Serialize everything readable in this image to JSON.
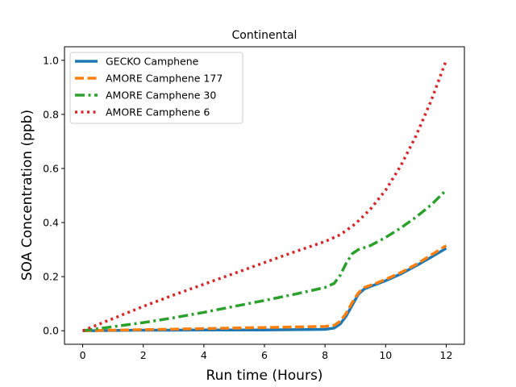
{
  "chart_data": {
    "type": "line",
    "title": "Continental",
    "xlabel": "Run time (Hours)",
    "ylabel": "SOA Concentration (ppb)",
    "xlim": [
      -0.6,
      12.6
    ],
    "ylim": [
      -0.05,
      1.05
    ],
    "xticks": [
      0,
      2,
      4,
      6,
      8,
      10,
      12
    ],
    "yticks": [
      0.0,
      0.2,
      0.4,
      0.6,
      0.8,
      1.0
    ],
    "xtick_labels": [
      "0",
      "2",
      "4",
      "6",
      "8",
      "10",
      "12"
    ],
    "ytick_labels": [
      "0.0",
      "0.2",
      "0.4",
      "0.6",
      "0.8",
      "1.0"
    ],
    "grid": false,
    "legend_position": "top-left",
    "series": [
      {
        "name": "GECKO Camphene",
        "color": "#1f77b4",
        "style": "solid",
        "x": [
          0,
          1,
          2,
          3,
          4,
          5,
          6,
          7,
          8,
          8.3,
          8.5,
          8.7,
          8.9,
          9.1,
          9.3,
          9.6,
          10,
          10.5,
          11,
          11.5,
          12
        ],
        "y": [
          0,
          0.001,
          0.002,
          0.002,
          0.003,
          0.003,
          0.003,
          0.004,
          0.005,
          0.01,
          0.025,
          0.055,
          0.095,
          0.135,
          0.155,
          0.168,
          0.185,
          0.21,
          0.24,
          0.272,
          0.305
        ]
      },
      {
        "name": "AMORE Camphene 177",
        "color": "#ff7f0e",
        "style": "dashed",
        "x": [
          0,
          1,
          2,
          3,
          4,
          5,
          6,
          7,
          8,
          8.3,
          8.5,
          8.7,
          8.9,
          9.1,
          9.3,
          9.6,
          10,
          10.5,
          11,
          11.5,
          12
        ],
        "y": [
          0,
          0.002,
          0.004,
          0.006,
          0.008,
          0.01,
          0.012,
          0.014,
          0.016,
          0.02,
          0.035,
          0.065,
          0.105,
          0.14,
          0.16,
          0.172,
          0.19,
          0.215,
          0.245,
          0.28,
          0.315
        ]
      },
      {
        "name": "AMORE Camphene 30",
        "color": "#2ca02c",
        "style": "dashdot",
        "x": [
          0,
          1,
          2,
          3,
          4,
          5,
          6,
          7,
          8,
          8.3,
          8.5,
          8.7,
          8.9,
          9.1,
          9.5,
          10,
          10.5,
          11,
          11.5,
          12
        ],
        "y": [
          0,
          0.015,
          0.03,
          0.048,
          0.068,
          0.09,
          0.112,
          0.135,
          0.16,
          0.175,
          0.205,
          0.25,
          0.285,
          0.3,
          0.315,
          0.345,
          0.38,
          0.42,
          0.465,
          0.52
        ]
      },
      {
        "name": "AMORE Camphene 6",
        "color": "#d62728",
        "style": "dotted",
        "x": [
          0,
          1,
          2,
          3,
          4,
          5,
          6,
          7,
          8,
          8.5,
          9,
          9.5,
          10,
          10.5,
          11,
          11.5,
          12
        ],
        "y": [
          0,
          0.045,
          0.09,
          0.132,
          0.172,
          0.212,
          0.252,
          0.292,
          0.33,
          0.355,
          0.395,
          0.45,
          0.52,
          0.61,
          0.72,
          0.85,
          1.0
        ]
      }
    ]
  }
}
